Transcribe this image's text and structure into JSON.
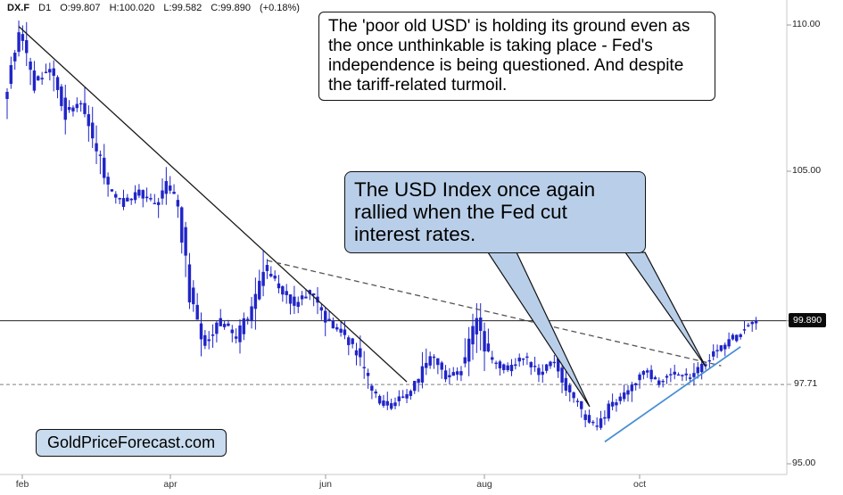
{
  "ticker": {
    "symbol": "DX.F",
    "timeframe": "D1",
    "open": "O:99.807",
    "high": "H:100.020",
    "low": "L:99.582",
    "close": "C:99.890",
    "change": "(+0.18%)"
  },
  "annotations": {
    "top_note": "The 'poor old USD' is holding its ground even as the once unthinkable is taking place -  Fed's independence is being questioned. And despite the tariff-related turmoil.",
    "usd_note": "The USD Index once again rallied when the Fed cut interest rates.",
    "brand": "GoldPriceForecast.com"
  },
  "axis": {
    "y_ticks": [
      "110.00",
      "105.00",
      "95.00"
    ],
    "dashed_level_label": "97.71",
    "price_badge": "99.890",
    "x_labels": [
      "feb",
      "apr",
      "jun",
      "aug",
      "oct"
    ]
  },
  "colors": {
    "candle": "#1f24c7",
    "note_fill": "#b9cfe9",
    "support_line": "#4a8fd4",
    "badge_bg": "#0b0b0b"
  },
  "chart_data": {
    "type": "candlestick",
    "symbol": "DX.F",
    "interval": "D1",
    "title": "USD Index (DX.F) daily chart",
    "latest": {
      "open": 99.807,
      "high": 100.02,
      "low": 99.582,
      "close": 99.89,
      "change_pct": 0.18
    },
    "y_range": [
      94.6,
      110.6
    ],
    "y_ticks": [
      110.0,
      105.0,
      95.0
    ],
    "levels": [
      {
        "price": 99.89,
        "style": "solid",
        "label": "99.890"
      },
      {
        "price": 97.71,
        "style": "dashed",
        "label": "97.71"
      }
    ],
    "x_labels": [
      "feb",
      "apr",
      "jun",
      "aug",
      "oct"
    ],
    "num_bars": 194,
    "price_path": [
      [
        0,
        107.2
      ],
      [
        4,
        109.8
      ],
      [
        8,
        108.0
      ],
      [
        12,
        108.5
      ],
      [
        16,
        107.0
      ],
      [
        20,
        107.4
      ],
      [
        24,
        105.8
      ],
      [
        27,
        104.4
      ],
      [
        31,
        103.9
      ],
      [
        35,
        104.3
      ],
      [
        39,
        103.8
      ],
      [
        42,
        104.6
      ],
      [
        45,
        103.9
      ],
      [
        48,
        100.8
      ],
      [
        52,
        99.1
      ],
      [
        56,
        99.9
      ],
      [
        60,
        99.3
      ],
      [
        64,
        100.3
      ],
      [
        67,
        101.7
      ],
      [
        71,
        101.1
      ],
      [
        75,
        100.4
      ],
      [
        79,
        100.9
      ],
      [
        83,
        99.9
      ],
      [
        87,
        99.5
      ],
      [
        91,
        98.8
      ],
      [
        95,
        97.5
      ],
      [
        99,
        96.9
      ],
      [
        103,
        97.3
      ],
      [
        107,
        97.9
      ],
      [
        110,
        98.7
      ],
      [
        114,
        97.9
      ],
      [
        118,
        98.2
      ],
      [
        122,
        99.9
      ],
      [
        125,
        98.6
      ],
      [
        130,
        98.2
      ],
      [
        134,
        98.7
      ],
      [
        138,
        98.1
      ],
      [
        142,
        98.5
      ],
      [
        146,
        97.4
      ],
      [
        150,
        96.6
      ],
      [
        153,
        96.3
      ],
      [
        157,
        97.1
      ],
      [
        161,
        97.5
      ],
      [
        165,
        98.2
      ],
      [
        169,
        97.8
      ],
      [
        173,
        98.1
      ],
      [
        177,
        97.9
      ],
      [
        181,
        98.5
      ],
      [
        185,
        99.0
      ],
      [
        189,
        99.4
      ],
      [
        193,
        99.89
      ]
    ],
    "trend_lines": [
      {
        "name": "downtrend",
        "from": [
          3,
          109.95
        ],
        "to": [
          103,
          97.8
        ],
        "style": "solid",
        "color": "#1a1a1a"
      },
      {
        "name": "dashed-resistance",
        "from": [
          67,
          101.95
        ],
        "to": [
          184,
          98.35
        ],
        "style": "dashed",
        "color": "#555555"
      },
      {
        "name": "rising-support",
        "from": [
          154,
          95.75
        ],
        "to": [
          189,
          99.0
        ],
        "style": "solid",
        "color": "#4a8fd4"
      }
    ]
  }
}
